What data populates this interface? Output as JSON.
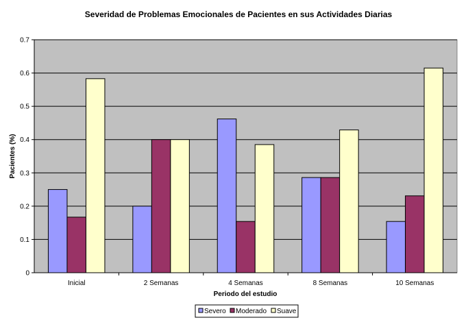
{
  "chart_data": {
    "type": "bar",
    "title": "Severidad de Problemas Emocionales de Pacientes en sus Actividades Diarias",
    "xlabel": "Periodo del estudio",
    "ylabel": "Pacientes (%)",
    "ylim": [
      0,
      0.7
    ],
    "yticks": [
      "0",
      "0.1",
      "0.2",
      "0.3",
      "0.4",
      "0.5",
      "0.6",
      "0.7"
    ],
    "categories": [
      "Inicial",
      "2 Semanas",
      "4 Semanas",
      "8 Semanas",
      "10 Semanas"
    ],
    "series": [
      {
        "name": "Severo",
        "color": "#9999ff",
        "values": [
          0.25,
          0.2,
          0.462,
          0.286,
          0.154
        ]
      },
      {
        "name": "Moderado",
        "color": "#993366",
        "values": [
          0.167,
          0.4,
          0.154,
          0.286,
          0.231
        ]
      },
      {
        "name": "Suave",
        "color": "#ffffcc",
        "values": [
          0.583,
          0.4,
          0.385,
          0.429,
          0.615
        ]
      }
    ],
    "plot_background": "#c0c0c0",
    "grid": true,
    "legend_position": "bottom"
  }
}
